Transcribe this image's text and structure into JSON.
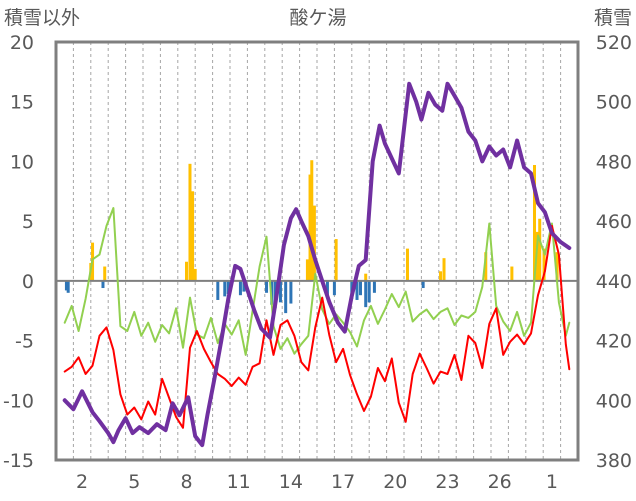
{
  "chart_data": {
    "type": "line",
    "title": "酸ケ湯",
    "left_axis_label": "積雪以外",
    "right_axis_label": "積雪",
    "left_ylim": [
      -15,
      20
    ],
    "left_ticks": [
      20,
      15,
      10,
      5,
      0,
      -5,
      -10,
      -15
    ],
    "right_ylim": [
      380,
      520
    ],
    "right_ticks": [
      520,
      500,
      480,
      460,
      440,
      420,
      400,
      380
    ],
    "x_tick_labels": [
      "2",
      "5",
      "8",
      "11",
      "14",
      "17",
      "20",
      "23",
      "26",
      "1"
    ],
    "grid": "vertical dashed",
    "colors": {
      "snow_depth": "#7030a0",
      "temperature_max": "#92d050",
      "temperature_min": "#ff0000",
      "snowfall": "#ffc000",
      "rainfall": "#2e75b6",
      "zero_line": "#7f7f7f",
      "frame": "#7f7f7f",
      "grid": "#a6a6a6"
    },
    "series": [
      {
        "key": "snow_depth",
        "axis": "right",
        "points": [
          [
            1,
            400
          ],
          [
            1.5,
            397
          ],
          [
            2,
            403
          ],
          [
            2.6,
            396
          ],
          [
            3,
            393
          ],
          [
            3.5,
            389
          ],
          [
            3.8,
            386
          ],
          [
            4.1,
            390
          ],
          [
            4.5,
            394
          ],
          [
            4.9,
            389
          ],
          [
            5.3,
            391
          ],
          [
            5.8,
            389
          ],
          [
            6.3,
            392
          ],
          [
            6.8,
            390
          ],
          [
            7.2,
            399
          ],
          [
            7.6,
            395
          ],
          [
            8.1,
            401
          ],
          [
            8.5,
            388
          ],
          [
            8.9,
            385
          ],
          [
            9.2,
            395
          ],
          [
            9.6,
            407
          ],
          [
            10,
            420
          ],
          [
            10.4,
            434
          ],
          [
            10.8,
            445
          ],
          [
            11.1,
            444
          ],
          [
            11.5,
            437
          ],
          [
            11.9,
            430
          ],
          [
            12.3,
            424
          ],
          [
            12.8,
            421
          ],
          [
            13.2,
            436
          ],
          [
            13.6,
            452
          ],
          [
            14,
            461
          ],
          [
            14.3,
            464
          ],
          [
            14.6,
            460
          ],
          [
            15,
            455
          ],
          [
            15.4,
            447
          ],
          [
            15.8,
            440
          ],
          [
            16.2,
            433
          ],
          [
            16.7,
            426
          ],
          [
            17.1,
            423
          ],
          [
            17.5,
            435
          ],
          [
            17.9,
            445
          ],
          [
            18.3,
            447
          ],
          [
            18.7,
            480
          ],
          [
            19.1,
            492
          ],
          [
            19.4,
            486
          ],
          [
            19.8,
            481
          ],
          [
            20.2,
            476
          ],
          [
            20.5,
            491
          ],
          [
            20.8,
            506
          ],
          [
            21.2,
            500
          ],
          [
            21.5,
            494
          ],
          [
            21.9,
            503
          ],
          [
            22.3,
            499
          ],
          [
            22.7,
            497
          ],
          [
            23,
            506
          ],
          [
            23.4,
            502
          ],
          [
            23.8,
            498
          ],
          [
            24.2,
            490
          ],
          [
            24.6,
            487
          ],
          [
            25,
            480
          ],
          [
            25.4,
            485
          ],
          [
            25.8,
            482
          ],
          [
            26.2,
            484
          ],
          [
            26.6,
            478
          ],
          [
            27,
            487
          ],
          [
            27.4,
            478
          ],
          [
            27.8,
            476
          ],
          [
            28.2,
            466
          ],
          [
            28.6,
            463
          ],
          [
            29,
            456
          ],
          [
            29.5,
            453
          ],
          [
            30,
            451
          ]
        ]
      },
      {
        "key": "temperature_max",
        "axis": "left",
        "points": [
          [
            1,
            -3.5
          ],
          [
            1.4,
            -2.1
          ],
          [
            1.8,
            -4.2
          ],
          [
            2.2,
            -1.5
          ],
          [
            2.6,
            1.8
          ],
          [
            3,
            2.2
          ],
          [
            3.4,
            4.6
          ],
          [
            3.8,
            6.1
          ],
          [
            4.2,
            -3.8
          ],
          [
            4.6,
            -4.2
          ],
          [
            5,
            -2.6
          ],
          [
            5.4,
            -4.6
          ],
          [
            5.8,
            -3.5
          ],
          [
            6.2,
            -5.1
          ],
          [
            6.6,
            -3.7
          ],
          [
            7,
            -4.4
          ],
          [
            7.4,
            -2.3
          ],
          [
            7.8,
            -5.6
          ],
          [
            8.2,
            -1.4
          ],
          [
            8.6,
            -4.5
          ],
          [
            9,
            -4.8
          ],
          [
            9.4,
            -3.1
          ],
          [
            9.8,
            -5.2
          ],
          [
            10.2,
            -3.6
          ],
          [
            10.6,
            -4.5
          ],
          [
            11,
            -3.3
          ],
          [
            11.4,
            -6.2
          ],
          [
            11.8,
            -2.5
          ],
          [
            12.2,
            1.2
          ],
          [
            12.6,
            3.7
          ],
          [
            13,
            -3.8
          ],
          [
            13.4,
            -5.7
          ],
          [
            13.8,
            -4.8
          ],
          [
            14.2,
            -6.1
          ],
          [
            14.6,
            -5.3
          ],
          [
            15,
            -4.6
          ],
          [
            15.4,
            0.6
          ],
          [
            15.8,
            -2.4
          ],
          [
            16.2,
            -3.6
          ],
          [
            16.6,
            -2.8
          ],
          [
            17,
            -3.5
          ],
          [
            17.4,
            -4.3
          ],
          [
            17.8,
            -5.5
          ],
          [
            18.2,
            -3.3
          ],
          [
            18.6,
            -2.1
          ],
          [
            19,
            -3.6
          ],
          [
            19.4,
            -2.4
          ],
          [
            19.8,
            -1.1
          ],
          [
            20.2,
            -2.2
          ],
          [
            20.6,
            -0.9
          ],
          [
            21,
            -3.4
          ],
          [
            21.4,
            -2.8
          ],
          [
            21.8,
            -2.4
          ],
          [
            22.2,
            -3.2
          ],
          [
            22.6,
            -2.6
          ],
          [
            23,
            -2.3
          ],
          [
            23.4,
            -3.7
          ],
          [
            23.8,
            -2.9
          ],
          [
            24.2,
            -3.1
          ],
          [
            24.6,
            -2.6
          ],
          [
            25,
            -0.5
          ],
          [
            25.4,
            4.8
          ],
          [
            25.8,
            -2.1
          ],
          [
            26.2,
            -3.4
          ],
          [
            26.6,
            -4.2
          ],
          [
            27,
            -2.6
          ],
          [
            27.4,
            -4.6
          ],
          [
            27.8,
            -3.5
          ],
          [
            28.2,
            3.8
          ],
          [
            28.6,
            2.2
          ],
          [
            29,
            4.8
          ],
          [
            29.4,
            -1.8
          ],
          [
            29.8,
            -4.6
          ],
          [
            30,
            -3.5
          ]
        ]
      },
      {
        "key": "temperature_min",
        "axis": "left",
        "points": [
          [
            1,
            -7.6
          ],
          [
            1.4,
            -7.2
          ],
          [
            1.8,
            -6.4
          ],
          [
            2.2,
            -7.8
          ],
          [
            2.6,
            -7.1
          ],
          [
            3,
            -4.6
          ],
          [
            3.4,
            -3.9
          ],
          [
            3.8,
            -5.8
          ],
          [
            4.2,
            -9.5
          ],
          [
            4.6,
            -11.2
          ],
          [
            5,
            -10.6
          ],
          [
            5.4,
            -11.6
          ],
          [
            5.8,
            -10.1
          ],
          [
            6.2,
            -11.2
          ],
          [
            6.6,
            -8.2
          ],
          [
            7,
            -9.8
          ],
          [
            7.4,
            -11.4
          ],
          [
            7.8,
            -12.3
          ],
          [
            8.2,
            -5.6
          ],
          [
            8.6,
            -4.2
          ],
          [
            9,
            -5.7
          ],
          [
            9.4,
            -6.8
          ],
          [
            9.8,
            -7.8
          ],
          [
            10.2,
            -8.2
          ],
          [
            10.6,
            -8.8
          ],
          [
            11,
            -8.1
          ],
          [
            11.4,
            -8.7
          ],
          [
            11.8,
            -7.2
          ],
          [
            12.2,
            -6.9
          ],
          [
            12.6,
            -3.3
          ],
          [
            13,
            -6.2
          ],
          [
            13.4,
            -3.7
          ],
          [
            13.8,
            -3.3
          ],
          [
            14.2,
            -4.6
          ],
          [
            14.6,
            -6.8
          ],
          [
            15,
            -7.5
          ],
          [
            15.4,
            -3.9
          ],
          [
            15.8,
            -1.4
          ],
          [
            16.2,
            -4.5
          ],
          [
            16.6,
            -6.8
          ],
          [
            17,
            -5.7
          ],
          [
            17.4,
            -7.9
          ],
          [
            17.8,
            -9.5
          ],
          [
            18.2,
            -10.9
          ],
          [
            18.6,
            -9.7
          ],
          [
            19,
            -7.3
          ],
          [
            19.4,
            -8.4
          ],
          [
            19.8,
            -6.5
          ],
          [
            20.2,
            -10.2
          ],
          [
            20.6,
            -11.8
          ],
          [
            21,
            -7.8
          ],
          [
            21.4,
            -6.1
          ],
          [
            21.8,
            -7.3
          ],
          [
            22.2,
            -8.6
          ],
          [
            22.6,
            -7.6
          ],
          [
            23,
            -7.8
          ],
          [
            23.4,
            -6.2
          ],
          [
            23.8,
            -8.3
          ],
          [
            24.2,
            -4.6
          ],
          [
            24.6,
            -5.2
          ],
          [
            25,
            -7.3
          ],
          [
            25.4,
            -3.6
          ],
          [
            25.8,
            -2.3
          ],
          [
            26.2,
            -6.2
          ],
          [
            26.6,
            -5.1
          ],
          [
            27,
            -4.5
          ],
          [
            27.4,
            -5.3
          ],
          [
            27.8,
            -4.4
          ],
          [
            28.2,
            -1.2
          ],
          [
            28.6,
            0.8
          ],
          [
            29,
            4.6
          ],
          [
            29.4,
            2.2
          ],
          [
            29.8,
            -5.3
          ],
          [
            30,
            -7.4
          ]
        ]
      }
    ],
    "bars": [
      {
        "key": "snowfall",
        "axis": "left",
        "points": [
          [
            2.5,
            1.5
          ],
          [
            2.6,
            3.2
          ],
          [
            3.3,
            1.2
          ],
          [
            8,
            1.6
          ],
          [
            8.2,
            9.8
          ],
          [
            8.35,
            7.5
          ],
          [
            8.5,
            1.0
          ],
          [
            14.95,
            1.8
          ],
          [
            15.1,
            8.9
          ],
          [
            15.2,
            10.1
          ],
          [
            15.35,
            6.3
          ],
          [
            16.6,
            3.5
          ],
          [
            18.3,
            0.6
          ],
          [
            20.7,
            2.7
          ],
          [
            22.6,
            0.8
          ],
          [
            22.8,
            1.9
          ],
          [
            25.2,
            2.4
          ],
          [
            26.7,
            1.2
          ],
          [
            28,
            9.7
          ],
          [
            28.15,
            4.1
          ],
          [
            28.3,
            5.2
          ],
          [
            28.55,
            2.7
          ],
          [
            29.3,
            2.4
          ]
        ]
      },
      {
        "key": "rainfall",
        "axis": "left",
        "points": [
          [
            1.1,
            -0.8
          ],
          [
            1.2,
            -1.0
          ],
          [
            3.2,
            -0.6
          ],
          [
            9.8,
            -1.6
          ],
          [
            10.2,
            -1.3
          ],
          [
            10.4,
            -1.1
          ],
          [
            11.1,
            -1.2
          ],
          [
            11.3,
            -0.9
          ],
          [
            12.6,
            -1.0
          ],
          [
            12.9,
            -2.0
          ],
          [
            13.1,
            -2.3
          ],
          [
            13.4,
            -1.8
          ],
          [
            13.7,
            -2.7
          ],
          [
            14,
            -1.9
          ],
          [
            16.1,
            -1.3
          ],
          [
            16.5,
            -1.2
          ],
          [
            17.5,
            -1.5
          ],
          [
            17.8,
            -1.6
          ],
          [
            18,
            -1.2
          ],
          [
            18.3,
            -2.2
          ],
          [
            18.5,
            -1.8
          ],
          [
            18.8,
            -1.0
          ],
          [
            21.6,
            -0.6
          ]
        ]
      }
    ]
  }
}
